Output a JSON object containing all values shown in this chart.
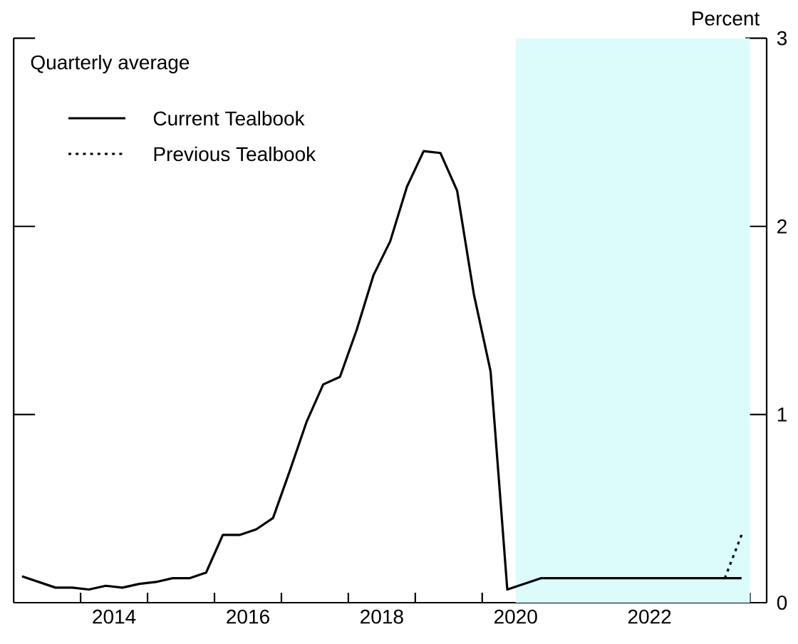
{
  "chart_data": {
    "type": "line",
    "ylabel": "Percent",
    "legend_title": "Quarterly average",
    "legend": "top left",
    "xlim": [
      2013,
      2024.25
    ],
    "ylim": [
      0,
      3
    ],
    "yticks": [
      0,
      1,
      2,
      3
    ],
    "xticks": [
      {
        "value": 2014,
        "label": null
      },
      {
        "value": 2015,
        "label": null
      },
      {
        "value": 2016,
        "label": null
      },
      {
        "value": 2017,
        "label": null
      },
      {
        "value": 2018,
        "label": null
      },
      {
        "value": 2019,
        "label": null
      },
      {
        "value": 2020,
        "label": null
      },
      {
        "value": 2021,
        "label": null
      },
      {
        "value": 2022,
        "label": null
      },
      {
        "value": 2023,
        "label": null
      },
      {
        "value": 2024,
        "label": null
      },
      {
        "value": 2014.5,
        "label": "2014"
      },
      {
        "value": 2016.5,
        "label": "2016"
      },
      {
        "value": 2018.5,
        "label": "2018"
      },
      {
        "value": 2020.5,
        "label": "2020"
      },
      {
        "value": 2022.5,
        "label": "2022"
      }
    ],
    "bands": [
      {
        "axis": "x",
        "from": 2020.5,
        "to": 2024,
        "color": "#dcfcfc"
      }
    ],
    "series": [
      {
        "name": "Current Tealbook",
        "color": "#000000",
        "line_style": "solid",
        "x": [
          2013.125,
          2013.375,
          2013.625,
          2013.875,
          2014.125,
          2014.375,
          2014.625,
          2014.875,
          2015.125,
          2015.375,
          2015.625,
          2015.875,
          2016.125,
          2016.375,
          2016.625,
          2016.875,
          2017.125,
          2017.375,
          2017.625,
          2017.875,
          2018.125,
          2018.375,
          2018.625,
          2018.875,
          2019.125,
          2019.375,
          2019.625,
          2019.875,
          2020.125,
          2020.375,
          2020.625,
          2020.875,
          2021.125,
          2021.375,
          2021.625,
          2021.875,
          2022.125,
          2022.375,
          2022.625,
          2022.875,
          2023.125,
          2023.375,
          2023.625,
          2023.875
        ],
        "values": [
          0.14,
          0.11,
          0.08,
          0.08,
          0.07,
          0.09,
          0.08,
          0.1,
          0.11,
          0.13,
          0.13,
          0.16,
          0.36,
          0.36,
          0.39,
          0.45,
          0.7,
          0.96,
          1.16,
          1.2,
          1.45,
          1.74,
          1.92,
          2.21,
          2.4,
          2.39,
          2.19,
          1.64,
          1.23,
          0.07,
          0.1,
          0.13,
          0.13,
          0.13,
          0.13,
          0.13,
          0.13,
          0.13,
          0.13,
          0.13,
          0.13,
          0.13,
          0.13,
          0.13
        ]
      },
      {
        "name": "Previous Tealbook",
        "color": "#000000",
        "line_style": "dotted",
        "x": [
          2023.625,
          2023.875
        ],
        "values": [
          0.13,
          0.36
        ]
      }
    ]
  }
}
